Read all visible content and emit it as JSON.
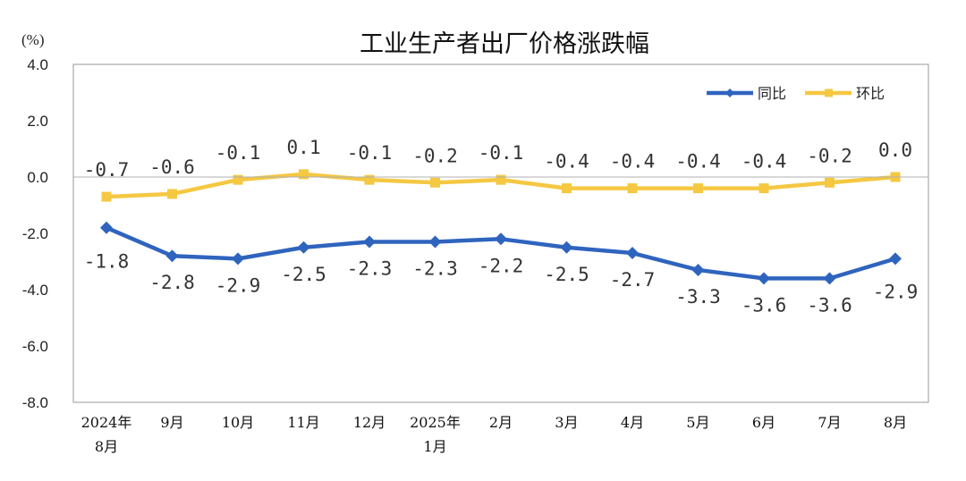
{
  "chart_data": {
    "type": "line",
    "title": "工业生产者出厂价格涨跌幅",
    "unit_label": "(%)",
    "ylim": [
      -8.0,
      4.0
    ],
    "yticks": [
      "4.0",
      "2.0",
      "0.0",
      "-2.0",
      "-4.0",
      "-6.0",
      "-8.0"
    ],
    "ytick_values": [
      4,
      2,
      0,
      -2,
      -4,
      -6,
      -8
    ],
    "categories": [
      [
        "2024年",
        "8月"
      ],
      [
        "9月"
      ],
      [
        "10月"
      ],
      [
        "11月"
      ],
      [
        "12月"
      ],
      [
        "2025年",
        "1月"
      ],
      [
        "2月"
      ],
      [
        "3月"
      ],
      [
        "4月"
      ],
      [
        "5月"
      ],
      [
        "6月"
      ],
      [
        "7月"
      ],
      [
        "8月"
      ]
    ],
    "series": [
      {
        "name": "同比",
        "color": "#2F64BE",
        "marker": "diamond",
        "values": [
          -1.8,
          -2.8,
          -2.9,
          -2.5,
          -2.3,
          -2.3,
          -2.2,
          -2.5,
          -2.7,
          -3.3,
          -3.6,
          -3.6,
          -2.9
        ],
        "labels": [
          "-1.8",
          "-2.8",
          "-2.9",
          "-2.5",
          "-2.3",
          "-2.3",
          "-2.2",
          "-2.5",
          "-2.7",
          "-3.3",
          "-3.6",
          "-3.6",
          "-2.9"
        ]
      },
      {
        "name": "环比",
        "color": "#F5C842",
        "marker": "square",
        "values": [
          -0.7,
          -0.6,
          -0.1,
          0.1,
          -0.1,
          -0.2,
          -0.1,
          -0.4,
          -0.4,
          -0.4,
          -0.4,
          -0.2,
          0.0
        ],
        "labels": [
          "-0.7",
          "-0.6",
          "-0.1",
          "0.1",
          "-0.1",
          "-0.2",
          "-0.1",
          "-0.4",
          "-0.4",
          "-0.4",
          "-0.4",
          "-0.2",
          "0.0"
        ]
      }
    ],
    "grid": false,
    "legend_position": "top-right"
  }
}
